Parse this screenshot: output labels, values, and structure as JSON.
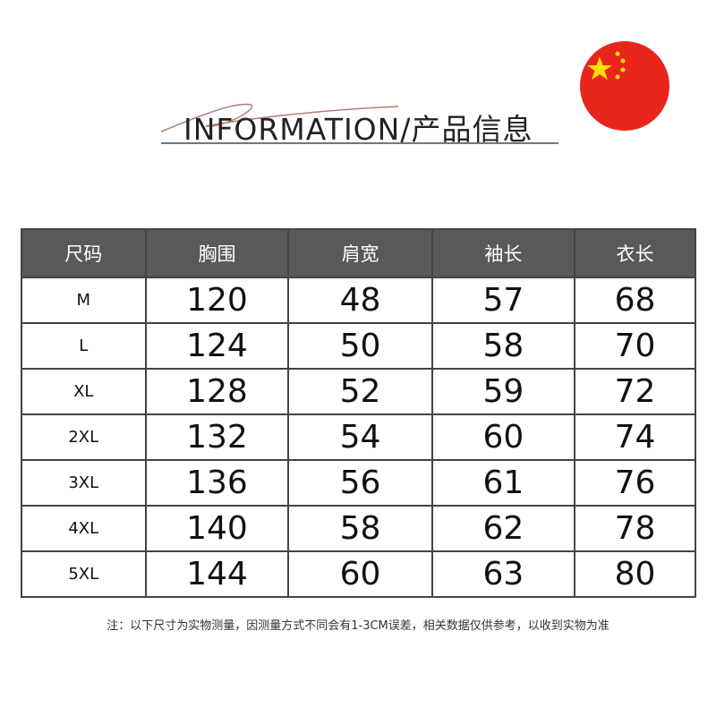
{
  "flag": {
    "icon": "china-flag-icon",
    "colors": {
      "red": "#e8261c",
      "yellow": "#ffde00"
    }
  },
  "header": {
    "title": "INFORMATION/产品信息"
  },
  "table": {
    "columns": [
      "尺码",
      "胸围",
      "肩宽",
      "袖长",
      "衣长"
    ],
    "rows": [
      [
        "M",
        "120",
        "48",
        "57",
        "68"
      ],
      [
        "L",
        "124",
        "50",
        "58",
        "70"
      ],
      [
        "XL",
        "128",
        "52",
        "59",
        "72"
      ],
      [
        "2XL",
        "132",
        "54",
        "60",
        "74"
      ],
      [
        "3XL",
        "136",
        "56",
        "61",
        "76"
      ],
      [
        "4XL",
        "140",
        "58",
        "62",
        "78"
      ],
      [
        "5XL",
        "144",
        "60",
        "63",
        "80"
      ]
    ],
    "header_bg": "#595959"
  },
  "note": "注：以下尺寸为实物测量，因测量方式不同会有1-3CM误差，相关数据仅供参考，以收到实物为准"
}
